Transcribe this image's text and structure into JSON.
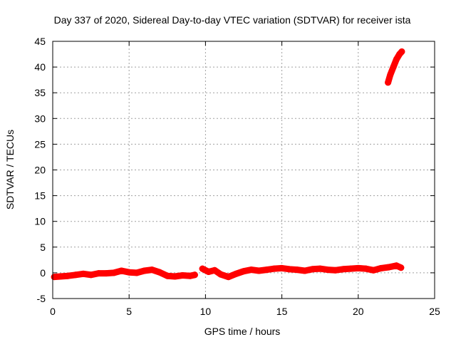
{
  "chart_data": {
    "type": "scatter",
    "title": "Day 337 of 2020, Sidereal Day-to-day VTEC variation (SDTVAR) for receiver ista",
    "xlabel": "GPS time / hours",
    "ylabel": "SDTVAR / TECUs",
    "xlim": [
      0,
      25
    ],
    "ylim": [
      -5,
      45
    ],
    "xticks": [
      0,
      5,
      10,
      15,
      20,
      25
    ],
    "yticks": [
      -5,
      0,
      5,
      10,
      15,
      20,
      25,
      30,
      35,
      40,
      45
    ],
    "grid": true,
    "legend": "none",
    "series": [
      {
        "color": "#ff0000",
        "segments": [
          {
            "x": [
              0.1,
              0.5,
              1.0,
              1.5,
              2.0,
              2.5,
              3.0,
              3.5,
              4.0,
              4.5,
              5.0,
              5.5,
              6.0,
              6.5,
              7.0,
              7.5,
              8.0,
              8.5,
              9.0,
              9.3
            ],
            "y": [
              -0.8,
              -0.7,
              -0.6,
              -0.4,
              -0.2,
              -0.4,
              -0.1,
              -0.1,
              0.0,
              0.4,
              0.1,
              0.0,
              0.4,
              0.6,
              0.1,
              -0.6,
              -0.7,
              -0.5,
              -0.6,
              -0.4
            ]
          },
          {
            "x": [
              9.8,
              10.2,
              10.6,
              11.0,
              11.5,
              12.0,
              12.5,
              13.0,
              13.5,
              14.0,
              14.5,
              15.0,
              15.5,
              16.0,
              16.5,
              17.0,
              17.5,
              18.0,
              18.5,
              19.0,
              19.5,
              20.0,
              20.5,
              21.0,
              21.5,
              22.0,
              22.5,
              22.8
            ],
            "y": [
              0.8,
              0.2,
              0.5,
              -0.3,
              -0.8,
              -0.2,
              0.3,
              0.6,
              0.4,
              0.6,
              0.8,
              0.9,
              0.7,
              0.6,
              0.4,
              0.7,
              0.8,
              0.6,
              0.5,
              0.7,
              0.8,
              0.9,
              0.8,
              0.5,
              0.9,
              1.1,
              1.4,
              1.0
            ]
          },
          {
            "x": [
              21.95,
              22.1,
              22.3,
              22.5,
              22.7,
              22.85
            ],
            "y": [
              37.0,
              38.5,
              40.0,
              41.5,
              42.5,
              43.0
            ]
          }
        ]
      }
    ]
  }
}
